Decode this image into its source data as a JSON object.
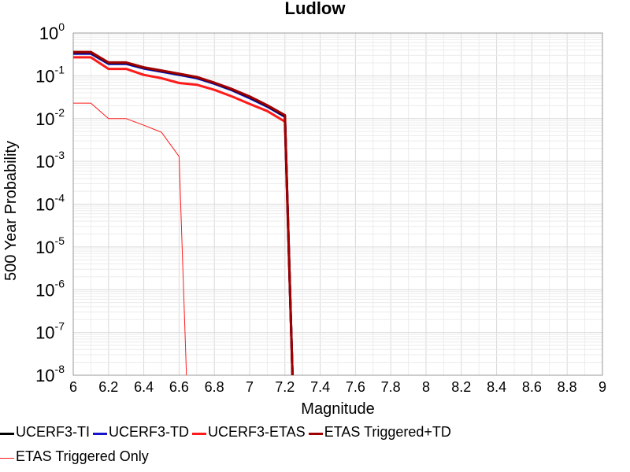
{
  "chart_data": {
    "type": "line",
    "title": "Ludlow",
    "xlabel": "Magnitude",
    "ylabel": "500 Year Probability",
    "xlim": [
      6,
      9
    ],
    "ylim": [
      1e-08,
      1
    ],
    "yscale": "log",
    "grid": true,
    "xticks": [
      "6",
      "6.2",
      "6.4",
      "6.6",
      "6.8",
      "7",
      "7.2",
      "7.4",
      "7.6",
      "7.8",
      "8",
      "8.2",
      "8.4",
      "8.6",
      "8.8",
      "9"
    ],
    "yticks": [
      {
        "base": "10",
        "exp": "0"
      },
      {
        "base": "10",
        "exp": "-1"
      },
      {
        "base": "10",
        "exp": "-2"
      },
      {
        "base": "10",
        "exp": "-3"
      },
      {
        "base": "10",
        "exp": "-4"
      },
      {
        "base": "10",
        "exp": "-5"
      },
      {
        "base": "10",
        "exp": "-6"
      },
      {
        "base": "10",
        "exp": "-7"
      },
      {
        "base": "10",
        "exp": "-8"
      }
    ],
    "legend_position": "bottom",
    "series": [
      {
        "name": "UCERF3-TI",
        "color": "#000000",
        "width": 3,
        "x": [
          6.0,
          6.1,
          6.2,
          6.3,
          6.4,
          6.5,
          6.6,
          6.7,
          6.8,
          6.9,
          7.0,
          7.1,
          7.2,
          7.25
        ],
        "y": [
          0.35,
          0.35,
          0.2,
          0.2,
          0.155,
          0.13,
          0.11,
          0.092,
          0.068,
          0.048,
          0.032,
          0.02,
          0.0115,
          1e-09
        ]
      },
      {
        "name": "UCERF3-TD",
        "color": "#1515cc",
        "width": 3,
        "x": [
          6.0,
          6.1,
          6.2,
          6.3,
          6.4,
          6.5,
          6.6,
          6.7,
          6.8,
          6.9,
          7.0,
          7.1,
          7.2,
          7.25
        ],
        "y": [
          0.33,
          0.33,
          0.19,
          0.19,
          0.148,
          0.125,
          0.105,
          0.088,
          0.065,
          0.046,
          0.03,
          0.019,
          0.011,
          1e-09
        ]
      },
      {
        "name": "UCERF3-ETAS",
        "color": "#ff1a1a",
        "width": 3,
        "x": [
          6.0,
          6.1,
          6.2,
          6.3,
          6.4,
          6.5,
          6.6,
          6.7,
          6.8,
          6.9,
          7.0,
          7.1,
          7.2,
          7.25
        ],
        "y": [
          0.27,
          0.27,
          0.145,
          0.145,
          0.105,
          0.088,
          0.068,
          0.062,
          0.047,
          0.033,
          0.022,
          0.015,
          0.0085,
          1e-09
        ]
      },
      {
        "name": "ETAS Triggered+TD",
        "color": "#a00000",
        "width": 3,
        "x": [
          6.0,
          6.1,
          6.2,
          6.3,
          6.4,
          6.5,
          6.6,
          6.7,
          6.8,
          6.9,
          7.0,
          7.1,
          7.2,
          7.25
        ],
        "y": [
          0.36,
          0.36,
          0.205,
          0.205,
          0.158,
          0.133,
          0.112,
          0.094,
          0.069,
          0.049,
          0.033,
          0.0205,
          0.012,
          1e-09
        ]
      },
      {
        "name": "ETAS Triggered Only",
        "color": "#ff1a1a",
        "width": 1,
        "x": [
          6.0,
          6.1,
          6.2,
          6.3,
          6.4,
          6.5,
          6.6,
          6.65
        ],
        "y": [
          0.023,
          0.023,
          0.01,
          0.01,
          0.007,
          0.0048,
          0.0013,
          1e-09
        ]
      }
    ]
  }
}
